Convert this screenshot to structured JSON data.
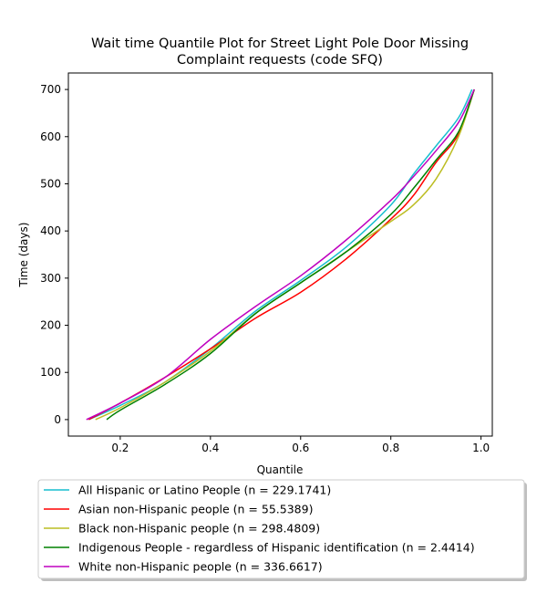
{
  "chart_data": {
    "type": "line",
    "title": [
      "Wait time Quantile Plot for Street Light Pole Door Missing",
      "Complaint  requests (code SFQ)"
    ],
    "xlabel": "Quantile",
    "ylabel": "Time (days)",
    "xlim": [
      0.085,
      1.025
    ],
    "ylim": [
      -35,
      735
    ],
    "xticks": [
      0.2,
      0.4,
      0.6,
      0.8,
      1.0
    ],
    "xtick_labels": [
      "0.2",
      "0.4",
      "0.6",
      "0.8",
      "1.0"
    ],
    "yticks": [
      0,
      100,
      200,
      300,
      400,
      500,
      600,
      700
    ],
    "ytick_labels": [
      "0",
      "100",
      "200",
      "300",
      "400",
      "500",
      "600",
      "700"
    ],
    "grid": false,
    "legend_position": "below",
    "series": [
      {
        "name": "All Hispanic or Latino People (n = 229.1741)",
        "color": "#17becf",
        "x": [
          0.13,
          0.2,
          0.3,
          0.4,
          0.5,
          0.6,
          0.7,
          0.8,
          0.85,
          0.9,
          0.95,
          0.98
        ],
        "y": [
          0,
          30,
          80,
          150,
          230,
          295,
          365,
          455,
          520,
          580,
          640,
          700
        ]
      },
      {
        "name": "Asian non-Hispanic people (n = 55.5389)",
        "color": "#ff0000",
        "x": [
          0.13,
          0.2,
          0.3,
          0.4,
          0.5,
          0.6,
          0.7,
          0.8,
          0.85,
          0.9,
          0.95,
          0.985
        ],
        "y": [
          0,
          35,
          90,
          150,
          215,
          270,
          340,
          425,
          475,
          545,
          605,
          700
        ]
      },
      {
        "name": "Black non-Hispanic people (n = 298.4809)",
        "color": "#bcbd22",
        "x": [
          0.145,
          0.2,
          0.3,
          0.4,
          0.5,
          0.6,
          0.7,
          0.8,
          0.85,
          0.9,
          0.95,
          0.985
        ],
        "y": [
          0,
          25,
          80,
          145,
          225,
          290,
          355,
          420,
          455,
          510,
          600,
          700
        ]
      },
      {
        "name": "Indigenous People - regardless of Hispanic identification (n = 2.4414)",
        "color": "#008000",
        "x": [
          0.17,
          0.2,
          0.3,
          0.4,
          0.5,
          0.6,
          0.7,
          0.8,
          0.85,
          0.9,
          0.95,
          0.985
        ],
        "y": [
          0,
          20,
          75,
          140,
          225,
          290,
          355,
          435,
          490,
          550,
          610,
          700
        ]
      },
      {
        "name": "White non-Hispanic people (n = 336.6617)",
        "color": "#bf00bf",
        "x": [
          0.125,
          0.2,
          0.3,
          0.4,
          0.5,
          0.6,
          0.7,
          0.8,
          0.85,
          0.9,
          0.95,
          0.985
        ],
        "y": [
          0,
          35,
          90,
          170,
          240,
          305,
          380,
          465,
          515,
          570,
          630,
          700
        ]
      }
    ]
  }
}
